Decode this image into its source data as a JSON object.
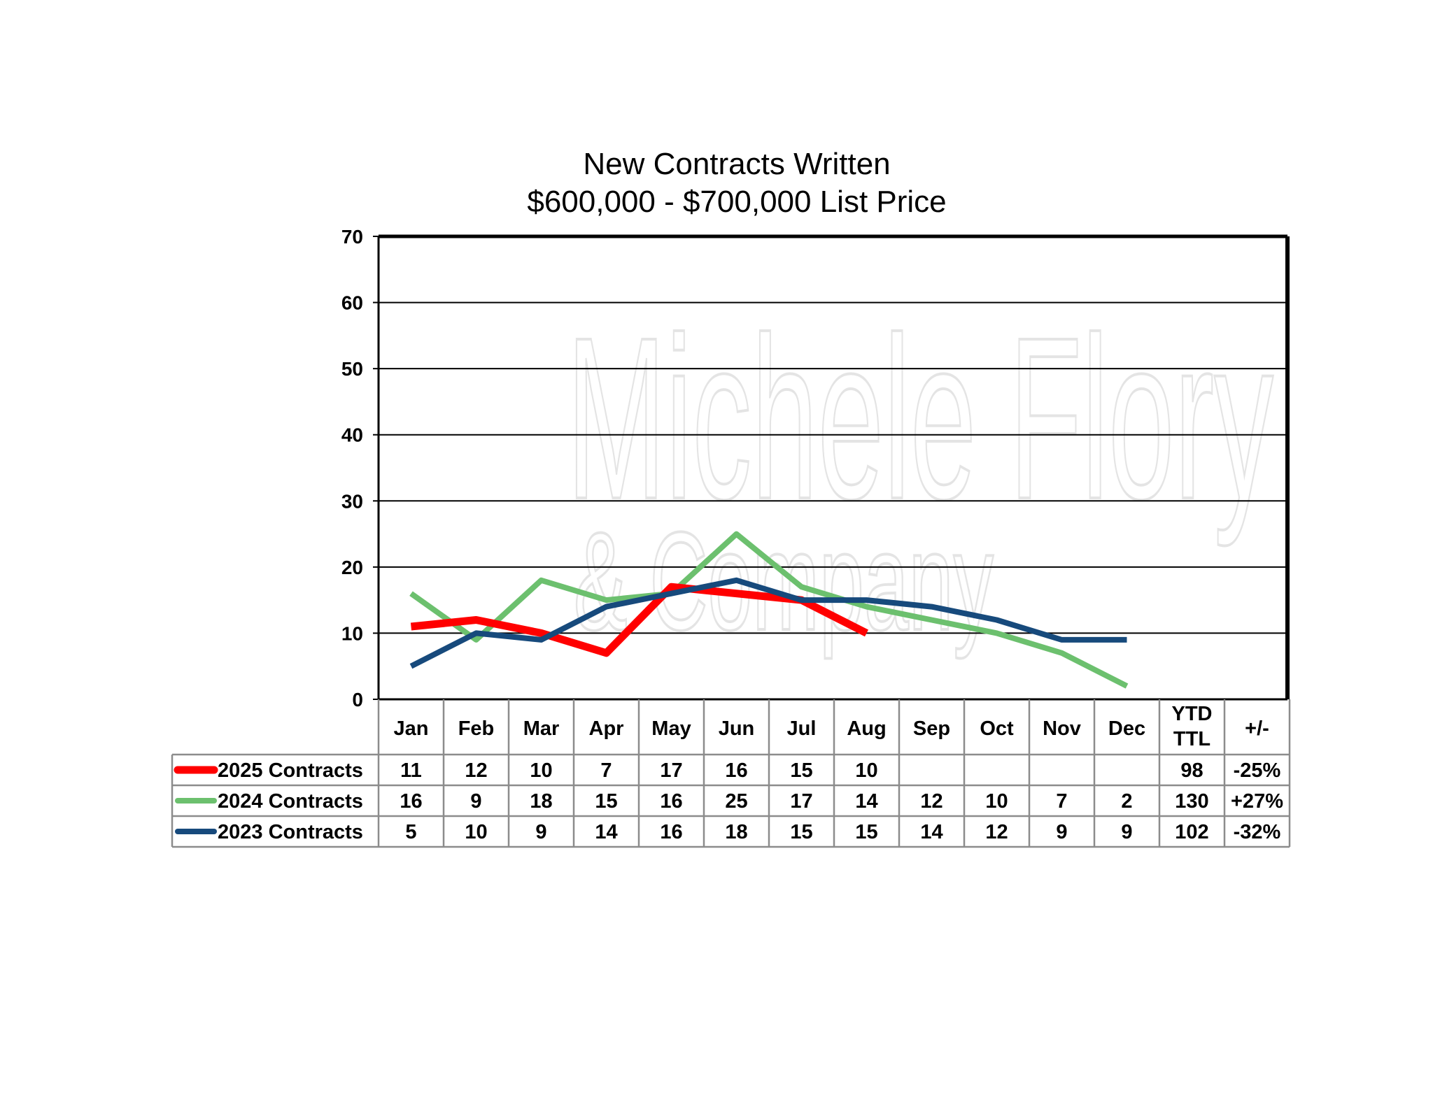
{
  "chart_data": {
    "type": "line",
    "title": "New Contracts Written",
    "subtitle": "$600,000 - $700,000 List Price",
    "watermark": [
      "Michele Flory",
      "& Company"
    ],
    "categories": [
      "Jan",
      "Feb",
      "Mar",
      "Apr",
      "May",
      "Jun",
      "Jul",
      "Aug",
      "Sep",
      "Oct",
      "Nov",
      "Dec"
    ],
    "extra_columns": [
      "YTD TTL",
      "+/-"
    ],
    "ylim": [
      0,
      70
    ],
    "yticks": [
      0,
      10,
      20,
      30,
      40,
      50,
      60,
      70
    ],
    "grid": true,
    "series": [
      {
        "name": "2025 Contracts",
        "color": "#ff0000",
        "values": [
          11,
          12,
          10,
          7,
          17,
          16,
          15,
          10,
          null,
          null,
          null,
          null
        ],
        "ytd": "98",
        "change": "-25%"
      },
      {
        "name": "2024 Contracts",
        "color": "#6cc06e",
        "values": [
          16,
          9,
          18,
          15,
          16,
          25,
          17,
          14,
          12,
          10,
          7,
          2
        ],
        "ytd": "130",
        "change": "+27%"
      },
      {
        "name": "2023 Contracts",
        "color": "#174a7c",
        "values": [
          5,
          10,
          9,
          14,
          16,
          18,
          15,
          15,
          14,
          12,
          9,
          9
        ],
        "ytd": "102",
        "change": "-32%"
      }
    ]
  }
}
